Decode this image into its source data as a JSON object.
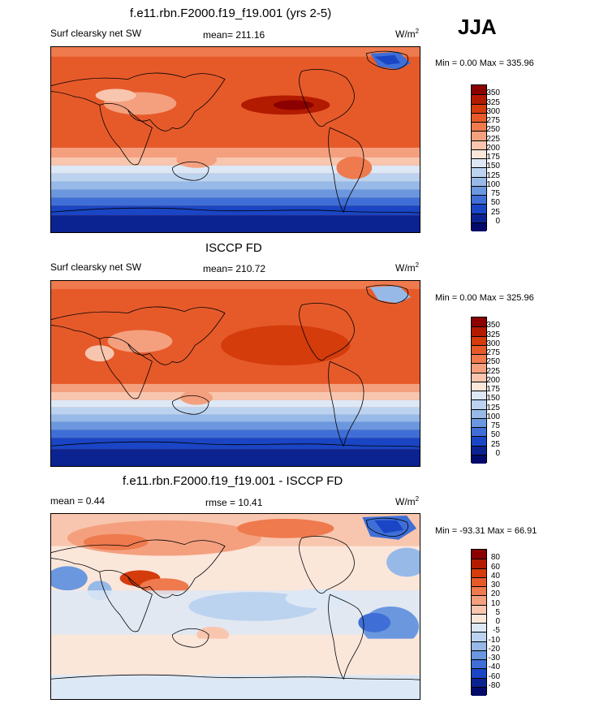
{
  "season": "JJA",
  "panels": [
    {
      "title": "f.e11.rbn.F2000.f19_f19.001 (yrs 2-5)",
      "left_label": "Surf clearsky net SW",
      "center_label": "mean= 211.16",
      "units_base": "W/m",
      "units_exp": "2",
      "minmax": "Min =   0.00 Max = 335.96",
      "kind": "abs_model"
    },
    {
      "title": "ISCCP FD",
      "left_label": "Surf clearsky net SW",
      "center_label": "mean= 210.72",
      "units_base": "W/m",
      "units_exp": "2",
      "minmax": "Min =   0.00 Max = 325.96",
      "kind": "abs_obs"
    },
    {
      "title": "f.e11.rbn.F2000.f19_f19.001 - ISCCP FD",
      "left_label": "mean =   0.44",
      "center_label": "rmse =  10.41",
      "units_base": "W/m",
      "units_exp": "2",
      "minmax": "Min = -93.31 Max =  66.91",
      "kind": "diff"
    }
  ],
  "colorbars": {
    "absolute": {
      "labels": [
        "350",
        "325",
        "300",
        "275",
        "250",
        "225",
        "200",
        "175",
        "150",
        "125",
        "100",
        "75",
        "50",
        "25",
        "0"
      ],
      "colors": [
        "#8b0000",
        "#b31b00",
        "#d43c0c",
        "#e65a2a",
        "#ee7a4e",
        "#f4a07f",
        "#f8c6ae",
        "#fbe6da",
        "#dde8f6",
        "#bcd3ef",
        "#97b9e8",
        "#6b97df",
        "#3f6fd6",
        "#1a45c4",
        "#0a2391",
        "#020a6a"
      ]
    },
    "difference": {
      "labels": [
        "80",
        "60",
        "40",
        "30",
        "20",
        "10",
        "5",
        "0",
        "-5",
        "-10",
        "-20",
        "-30",
        "-40",
        "-60",
        "-80"
      ],
      "colors": [
        "#8b0000",
        "#b31b00",
        "#d43c0c",
        "#e65a2a",
        "#ee7a4e",
        "#f4a07f",
        "#f8c6ae",
        "#fbe6da",
        "#dde8f6",
        "#bcd3ef",
        "#97b9e8",
        "#6b97df",
        "#3f6fd6",
        "#1a45c4",
        "#0a2391",
        "#020a6a"
      ]
    }
  }
}
